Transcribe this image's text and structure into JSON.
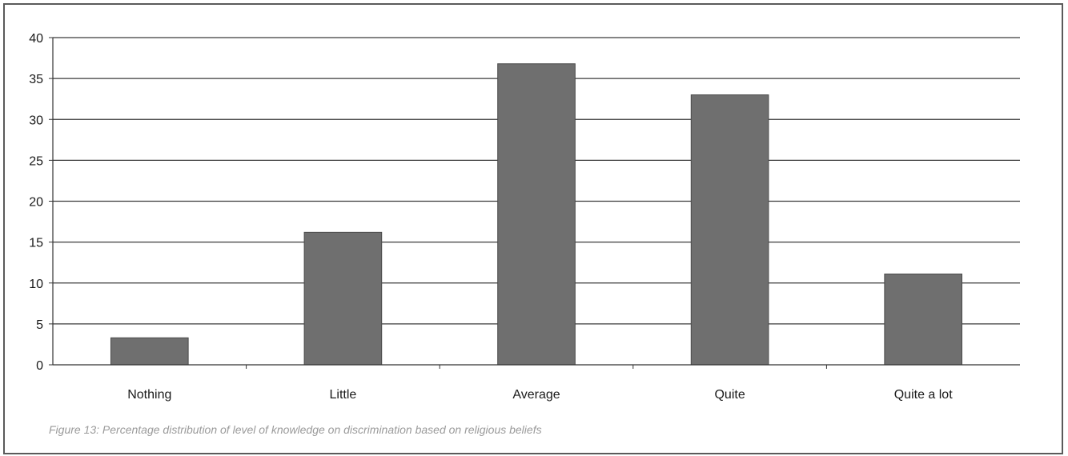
{
  "chart_data": {
    "type": "bar",
    "categories": [
      "Nothing",
      "Little",
      "Average",
      "Quite",
      "Quite a lot"
    ],
    "values": [
      3.3,
      16.2,
      36.8,
      33,
      11.1
    ],
    "ylim": [
      0,
      40
    ],
    "yticks": [
      0,
      5,
      10,
      15,
      20,
      25,
      30,
      35,
      40
    ],
    "grid": true,
    "legend": "none",
    "bar_color": "#6f6f6f",
    "gridline_color": "#3a3a3a"
  },
  "caption": "Figure 13: Percentage distribution of level of knowledge on discrimination based on religious beliefs"
}
